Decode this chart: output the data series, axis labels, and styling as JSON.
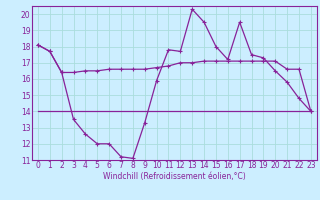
{
  "title": "",
  "xlabel": "Windchill (Refroidissement éolien,°C)",
  "bg_color": "#cceeff",
  "grid_color": "#aadddd",
  "line_color": "#882299",
  "xlim": [
    -0.5,
    23.5
  ],
  "ylim": [
    11,
    20.5
  ],
  "xticks": [
    0,
    1,
    2,
    3,
    4,
    5,
    6,
    7,
    8,
    9,
    10,
    11,
    12,
    13,
    14,
    15,
    16,
    17,
    18,
    19,
    20,
    21,
    22,
    23
  ],
  "yticks": [
    11,
    12,
    13,
    14,
    15,
    16,
    17,
    18,
    19,
    20
  ],
  "line1_x": [
    0,
    1,
    2,
    3,
    4,
    5,
    6,
    7,
    8,
    9,
    10,
    11,
    12,
    13,
    14,
    15,
    16,
    17,
    18,
    19,
    20,
    21,
    22,
    23
  ],
  "line1_y": [
    18.1,
    17.7,
    16.4,
    16.4,
    16.5,
    16.5,
    16.6,
    16.6,
    16.6,
    16.6,
    16.7,
    16.8,
    17.0,
    17.0,
    17.1,
    17.1,
    17.1,
    17.1,
    17.1,
    17.1,
    17.1,
    16.6,
    16.6,
    14.0
  ],
  "line2_x": [
    0,
    1,
    2,
    3,
    4,
    5,
    6,
    7,
    8,
    9,
    10,
    11,
    12,
    13,
    14,
    15,
    16,
    17,
    18,
    19,
    20,
    21,
    22,
    23
  ],
  "line2_y": [
    18.1,
    17.7,
    16.4,
    13.5,
    12.6,
    12.0,
    12.0,
    11.2,
    11.1,
    13.3,
    15.9,
    17.8,
    17.7,
    20.3,
    19.5,
    18.0,
    17.2,
    19.5,
    17.5,
    17.3,
    16.5,
    15.8,
    14.8,
    14.0
  ],
  "line3_x": [
    0,
    23
  ],
  "line3_y": [
    14.0,
    14.0
  ],
  "xlabel_fontsize": 5.5,
  "tick_fontsize": 5.5,
  "linewidth": 0.9,
  "marker_size": 2.5
}
